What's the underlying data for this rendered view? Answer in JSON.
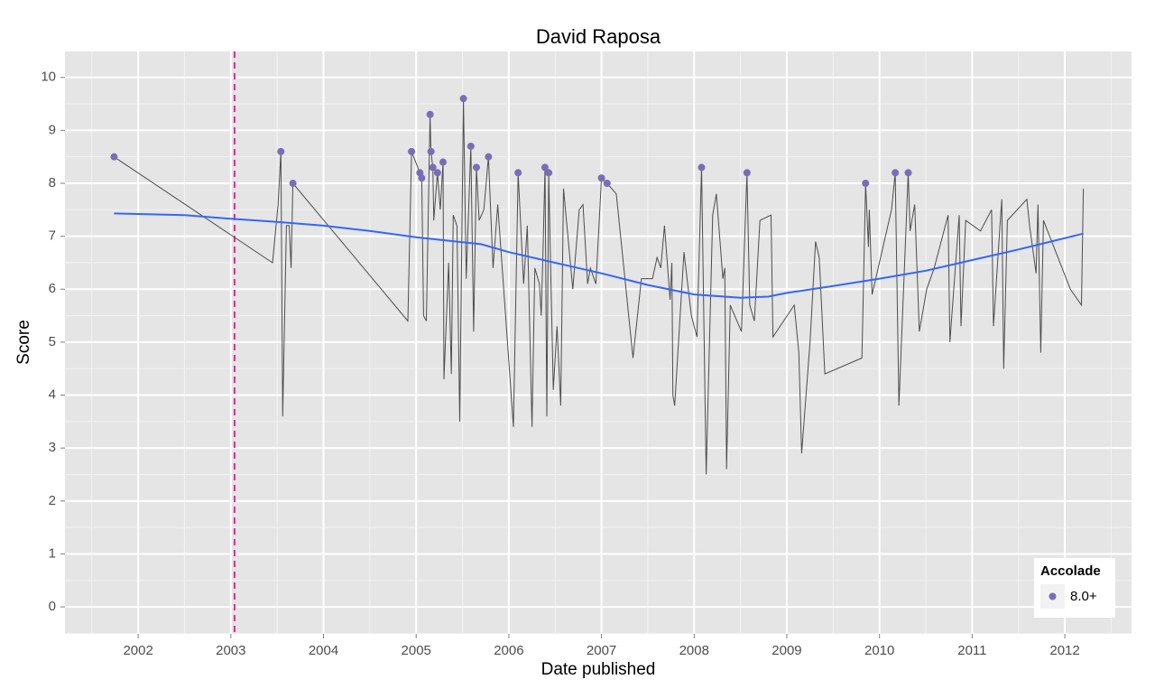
{
  "chart_data": {
    "type": "line",
    "title": "David Raposa",
    "xlabel": "Date published",
    "ylabel": "Score",
    "xlim": [
      2001.21,
      2012.72
    ],
    "xticks": [
      2002,
      2003,
      2004,
      2005,
      2006,
      2007,
      2008,
      2009,
      2010,
      2011,
      2012
    ],
    "ylim": [
      -0.51,
      10.49
    ],
    "yticks": [
      0,
      1,
      2,
      3,
      4,
      5,
      6,
      7,
      8,
      9,
      10
    ],
    "grid": true,
    "line": {
      "color": "#4d4d4d",
      "x": [
        2001.74,
        2003.45,
        2003.51,
        2003.54,
        2003.56,
        2003.6,
        2003.63,
        2003.65,
        2003.67,
        2004.91,
        2004.95,
        2005.04,
        2005.06,
        2005.08,
        2005.11,
        2005.15,
        2005.16,
        2005.18,
        2005.19,
        2005.23,
        2005.26,
        2005.29,
        2005.3,
        2005.35,
        2005.38,
        2005.4,
        2005.44,
        2005.47,
        2005.51,
        2005.54,
        2005.59,
        2005.62,
        2005.65,
        2005.68,
        2005.73,
        2005.78,
        2005.83,
        2005.88,
        2006.05,
        2006.1,
        2006.16,
        2006.2,
        2006.25,
        2006.28,
        2006.33,
        2006.35,
        2006.37,
        2006.39,
        2006.41,
        2006.43,
        2006.45,
        2006.48,
        2006.52,
        2006.56,
        2006.59,
        2006.69,
        2006.76,
        2006.8,
        2006.85,
        2006.88,
        2006.94,
        2007.0,
        2007.06,
        2007.16,
        2007.34,
        2007.43,
        2007.55,
        2007.6,
        2007.64,
        2007.68,
        2007.74,
        2007.76,
        2007.77,
        2007.79,
        2007.89,
        2007.97,
        2008.03,
        2008.08,
        2008.13,
        2008.2,
        2008.24,
        2008.31,
        2008.33,
        2008.35,
        2008.39,
        2008.51,
        2008.57,
        2008.6,
        2008.65,
        2008.71,
        2008.83,
        2008.85,
        2009.08,
        2009.13,
        2009.16,
        2009.25,
        2009.31,
        2009.35,
        2009.41,
        2009.81,
        2009.85,
        2009.88,
        2009.89,
        2009.92,
        2010.13,
        2010.17,
        2010.21,
        2010.31,
        2010.33,
        2010.35,
        2010.38,
        2010.43,
        2010.51,
        2010.59,
        2010.74,
        2010.76,
        2010.86,
        2010.88,
        2010.93,
        2011.09,
        2011.21,
        2011.23,
        2011.3,
        2011.32,
        2011.34,
        2011.38,
        2011.59,
        2011.62,
        2011.69,
        2011.71,
        2011.74,
        2011.77,
        2012.06,
        2012.18,
        2012.2
      ],
      "values": [
        8.5,
        6.5,
        7.6,
        8.6,
        3.6,
        7.2,
        7.2,
        6.4,
        8.0,
        5.4,
        8.6,
        8.2,
        8.1,
        5.5,
        5.4,
        9.3,
        8.6,
        8.3,
        7.3,
        8.2,
        7.5,
        8.4,
        4.3,
        6.5,
        4.4,
        7.4,
        7.2,
        3.5,
        9.6,
        6.2,
        8.7,
        5.2,
        8.3,
        7.3,
        7.5,
        8.5,
        6.4,
        7.6,
        3.4,
        8.2,
        6.1,
        7.2,
        3.4,
        6.4,
        6.1,
        5.5,
        6.8,
        8.3,
        3.6,
        8.2,
        6.5,
        4.1,
        5.3,
        3.8,
        7.9,
        6.0,
        7.5,
        7.6,
        6.1,
        6.4,
        6.1,
        8.1,
        8.0,
        7.8,
        4.7,
        6.2,
        6.2,
        6.6,
        6.4,
        7.2,
        5.8,
        6.5,
        4.0,
        3.8,
        6.7,
        5.5,
        5.1,
        8.3,
        2.5,
        7.4,
        7.8,
        6.2,
        6.4,
        2.6,
        5.7,
        5.2,
        8.2,
        5.7,
        5.4,
        7.3,
        7.4,
        5.1,
        5.7,
        4.8,
        2.9,
        5.0,
        6.9,
        6.6,
        4.4,
        4.7,
        8.0,
        6.8,
        7.5,
        5.9,
        7.5,
        8.2,
        3.8,
        8.2,
        7.1,
        7.3,
        7.6,
        5.2,
        6.0,
        6.4,
        7.4,
        5.0,
        7.4,
        5.3,
        7.3,
        7.1,
        7.5,
        5.3,
        7.2,
        7.7,
        4.5,
        7.3,
        7.7,
        7.2,
        6.3,
        7.6,
        4.8,
        7.3,
        6.0,
        5.7,
        7.9
      ]
    },
    "points": {
      "name": "8.0+",
      "color": "#7a6db6",
      "x": [
        2001.74,
        2003.54,
        2003.67,
        2004.95,
        2005.04,
        2005.06,
        2005.15,
        2005.16,
        2005.18,
        2005.23,
        2005.29,
        2005.51,
        2005.59,
        2005.65,
        2005.78,
        2006.1,
        2006.39,
        2006.43,
        2007.0,
        2007.06,
        2008.08,
        2008.57,
        2009.85,
        2010.17,
        2010.31
      ],
      "values": [
        8.5,
        8.6,
        8.0,
        8.6,
        8.2,
        8.1,
        9.3,
        8.6,
        8.3,
        8.2,
        8.4,
        9.6,
        8.7,
        8.3,
        8.5,
        8.2,
        8.3,
        8.2,
        8.1,
        8.0,
        8.3,
        8.2,
        8.0,
        8.2,
        8.2
      ]
    },
    "smooth": {
      "color": "#3366ff",
      "x": [
        2001.74,
        2002.5,
        2003,
        2003.5,
        2004,
        2004.5,
        2005,
        2005.7,
        2006,
        2006.5,
        2007,
        2007.5,
        2008,
        2008.5,
        2008.8,
        2009,
        2009.5,
        2010,
        2010.5,
        2011,
        2011.5,
        2012.2
      ],
      "values": [
        7.43,
        7.4,
        7.33,
        7.27,
        7.2,
        7.1,
        6.98,
        6.85,
        6.7,
        6.5,
        6.3,
        6.08,
        5.9,
        5.84,
        5.86,
        5.93,
        6.06,
        6.2,
        6.35,
        6.55,
        6.75,
        7.05
      ]
    },
    "vline": {
      "x": 2003.04,
      "color": "#e7298a"
    },
    "legend": {
      "title": "Accolade",
      "position": "bottom-right"
    }
  }
}
